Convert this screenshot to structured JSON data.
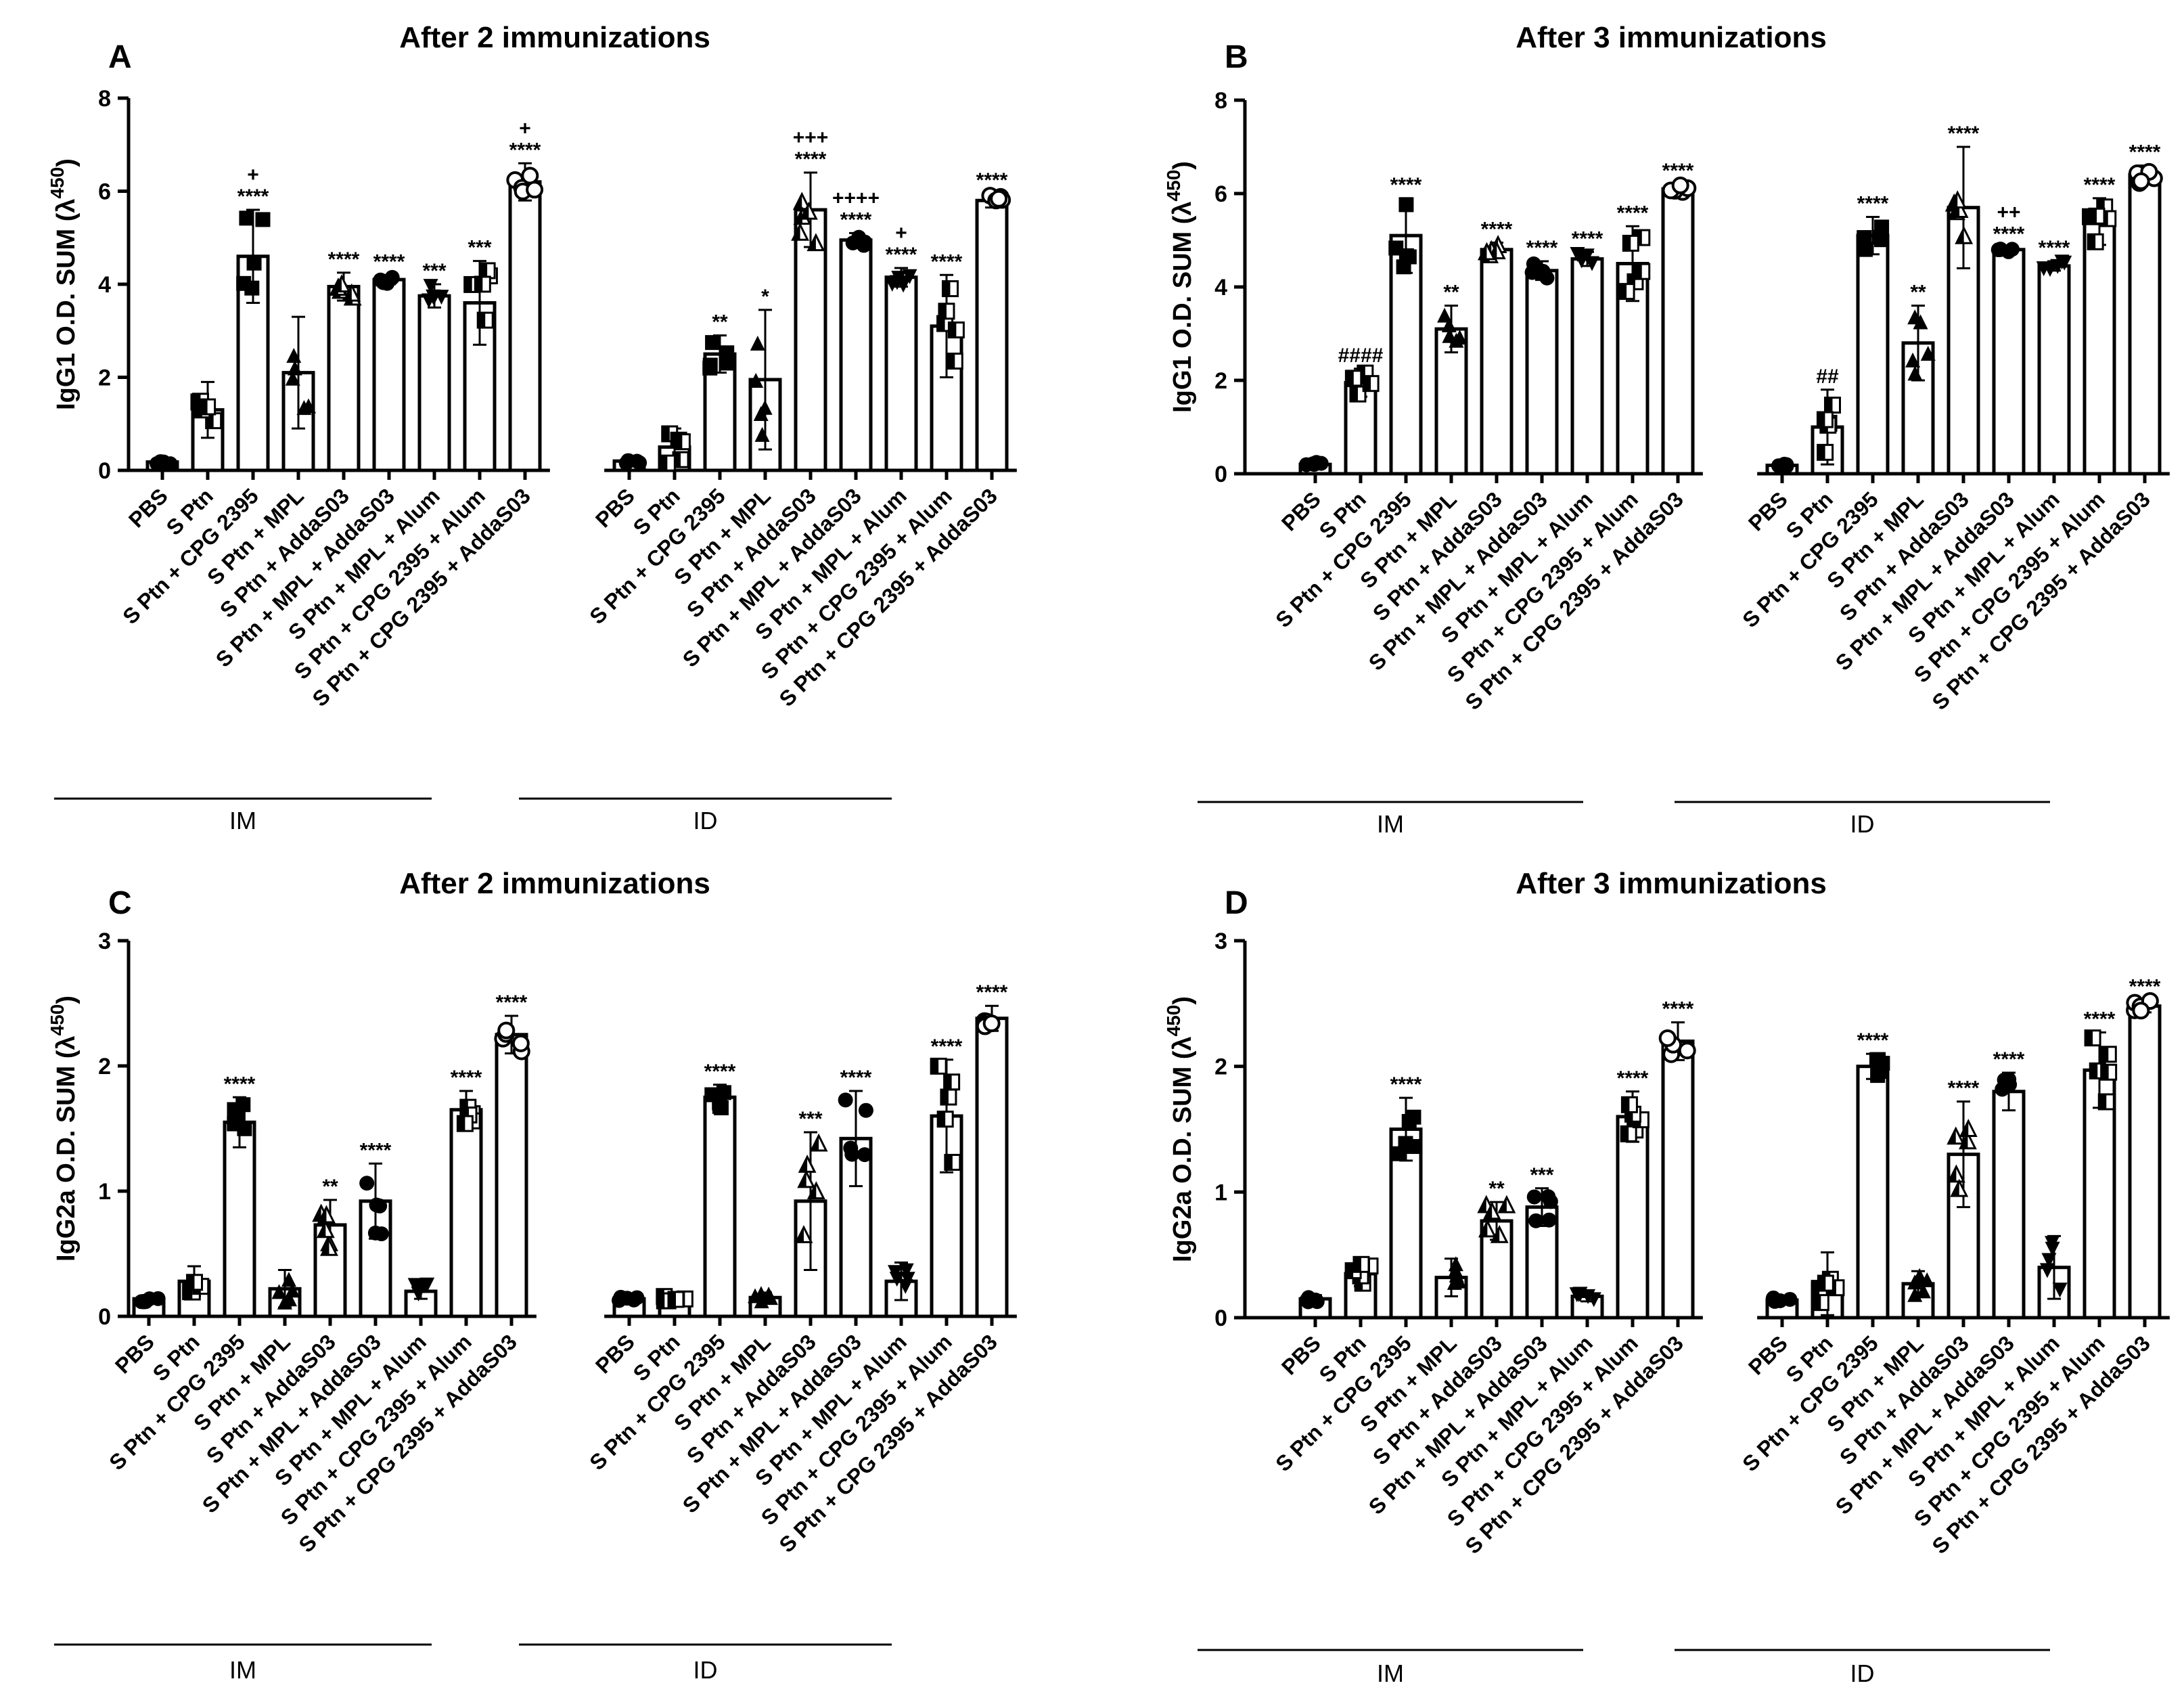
{
  "chart_data": [
    {
      "type": "bar",
      "panel_letter": "A",
      "title": "After 2 immunizations",
      "ylabel_text": "IgG1 O.D. SUM (λ",
      "ylabel_sup": "450",
      "ylabel_close": ")",
      "ylim": [
        0,
        8
      ],
      "yticks": [
        "0",
        "2",
        "4",
        "6",
        "8"
      ],
      "groups": [
        {
          "name": "IM",
          "categories": [
            "PBS",
            "S Ptn",
            "S Ptn + CPG 2395",
            "S Ptn + MPL",
            "S Ptn + AddaS03",
            "S Ptn + MPL + AddaS03",
            "S Ptn + MPL + Alum",
            "S Ptn + CPG 2395 + Alum",
            "S Ptn + CPG 2395 + AddaS03"
          ],
          "values": [
            0.18,
            1.3,
            4.6,
            2.1,
            3.95,
            4.1,
            3.75,
            3.6,
            6.2
          ],
          "errors": [
            0.05,
            0.6,
            1.0,
            1.2,
            0.3,
            0.1,
            0.25,
            0.9,
            0.4
          ],
          "significance": [
            "",
            "",
            "****",
            "",
            "****",
            "****",
            "***",
            "***",
            "****"
          ],
          "plus": [
            "",
            "",
            "+",
            "",
            "",
            "",
            "",
            "",
            "+"
          ]
        },
        {
          "name": "ID",
          "categories": [
            "PBS",
            "S Ptn",
            "S Ptn + CPG 2395",
            "S Ptn + MPL",
            "S Ptn + AddaS03",
            "S Ptn + MPL + AddaS03",
            "S Ptn + MPL + Alum",
            "S Ptn + CPG 2395 + Alum",
            "S Ptn + CPG 2395 + AddaS03"
          ],
          "values": [
            0.2,
            0.5,
            2.5,
            1.95,
            5.6,
            4.95,
            4.15,
            3.1,
            5.8
          ],
          "errors": [
            0.05,
            0.4,
            0.4,
            1.5,
            0.8,
            0.15,
            0.2,
            1.1,
            0.15
          ],
          "significance": [
            "",
            "",
            "**",
            "*",
            "****",
            "****",
            "****",
            "****",
            "****"
          ],
          "plus": [
            "",
            "",
            "",
            "",
            "+++",
            "++++",
            "+",
            "",
            ""
          ]
        }
      ]
    },
    {
      "type": "bar",
      "panel_letter": "B",
      "title": "After 3 immunizations",
      "ylabel_text": "IgG1 O.D. SUM (λ",
      "ylabel_sup": "450",
      "ylabel_close": ")",
      "ylim": [
        0,
        8
      ],
      "yticks": [
        "0",
        "2",
        "4",
        "6",
        "8"
      ],
      "groups": [
        {
          "name": "IM",
          "categories": [
            "PBS",
            "S Ptn",
            "S Ptn + CPG 2395",
            "S Ptn + MPL",
            "S Ptn + AddaS03",
            "S Ptn + MPL + AddaS03",
            "S Ptn + MPL + Alum",
            "S Ptn + CPG 2395 + Alum",
            "S Ptn + CPG 2395 + AddaS03"
          ],
          "values": [
            0.2,
            1.95,
            5.1,
            3.1,
            4.8,
            4.35,
            4.6,
            4.5,
            6.1
          ],
          "errors": [
            0.05,
            0.3,
            0.8,
            0.5,
            0.15,
            0.2,
            0.15,
            0.8,
            0.1
          ],
          "significance": [
            "",
            "####",
            "****",
            "**",
            "****",
            "****",
            "****",
            "****",
            "****"
          ],
          "plus": [
            "",
            "",
            "",
            "",
            "",
            "",
            "",
            "",
            ""
          ]
        },
        {
          "name": "ID",
          "categories": [
            "PBS",
            "S Ptn",
            "S Ptn + CPG 2395",
            "S Ptn + MPL",
            "S Ptn + AddaS03",
            "S Ptn + MPL + AddaS03",
            "S Ptn + MPL + Alum",
            "S Ptn + CPG 2395 + Alum",
            "S Ptn + CPG 2395 + AddaS03"
          ],
          "values": [
            0.18,
            1.0,
            5.1,
            2.8,
            5.7,
            4.8,
            4.45,
            5.4,
            6.4
          ],
          "errors": [
            0.03,
            0.8,
            0.4,
            0.8,
            1.3,
            0.05,
            0.1,
            0.5,
            0.2
          ],
          "significance": [
            "",
            "##",
            "****",
            "**",
            "****",
            "****",
            "****",
            "****",
            "****"
          ],
          "plus": [
            "",
            "",
            "",
            "",
            "",
            "++",
            "",
            "",
            ""
          ]
        }
      ]
    },
    {
      "type": "bar",
      "panel_letter": "C",
      "title": "After 2 immunizations",
      "ylabel_text": "IgG2a O.D. SUM (λ",
      "ylabel_sup": "450",
      "ylabel_close": ")",
      "ylim": [
        0,
        3
      ],
      "yticks": [
        "0",
        "1",
        "2",
        "3"
      ],
      "groups": [
        {
          "name": "IM",
          "categories": [
            "PBS",
            "S Ptn",
            "S Ptn + CPG 2395",
            "S Ptn + MPL",
            "S Ptn + AddaS03",
            "S Ptn + MPL + AddaS03",
            "S Ptn + MPL + Alum",
            "S Ptn + CPG 2395 + Alum",
            "S Ptn + CPG 2395 + AddaS03"
          ],
          "values": [
            0.14,
            0.28,
            1.55,
            0.22,
            0.73,
            0.92,
            0.2,
            1.65,
            2.25
          ],
          "errors": [
            0.03,
            0.12,
            0.2,
            0.15,
            0.2,
            0.3,
            0.06,
            0.15,
            0.15
          ],
          "significance": [
            "",
            "",
            "****",
            "",
            "**",
            "****",
            "",
            "****",
            "****"
          ],
          "plus": [
            "",
            "",
            "",
            "",
            "",
            "",
            "",
            "",
            ""
          ]
        },
        {
          "name": "ID",
          "categories": [
            "PBS",
            "S Ptn",
            "S Ptn + CPG 2395",
            "S Ptn + MPL",
            "S Ptn + AddaS03",
            "S Ptn + MPL + AddaS03",
            "S Ptn + MPL + Alum",
            "S Ptn + CPG 2395 + Alum",
            "S Ptn + CPG 2395 + AddaS03"
          ],
          "values": [
            0.14,
            0.15,
            1.75,
            0.15,
            0.92,
            1.42,
            0.28,
            1.6,
            2.38
          ],
          "errors": [
            0.02,
            0.03,
            0.1,
            0.04,
            0.55,
            0.38,
            0.15,
            0.45,
            0.1
          ],
          "significance": [
            "",
            "",
            "****",
            "",
            "***",
            "****",
            "",
            "****",
            "****"
          ],
          "plus": [
            "",
            "",
            "",
            "",
            "",
            "",
            "",
            "",
            ""
          ]
        }
      ]
    },
    {
      "type": "bar",
      "panel_letter": "D",
      "title": "After 3 immunizations",
      "ylabel_text": "IgG2a O.D. SUM (λ",
      "ylabel_sup": "450",
      "ylabel_close": ")",
      "ylim": [
        0,
        3
      ],
      "yticks": [
        "0",
        "1",
        "2",
        "3"
      ],
      "groups": [
        {
          "name": "IM",
          "categories": [
            "PBS",
            "S Ptn",
            "S Ptn + CPG 2395",
            "S Ptn + MPL",
            "S Ptn + AddaS03",
            "S Ptn + MPL + AddaS03",
            "S Ptn + MPL + Alum",
            "S Ptn + CPG 2395 + Alum",
            "S Ptn + CPG 2395 + AddaS03"
          ],
          "values": [
            0.15,
            0.35,
            1.5,
            0.32,
            0.77,
            0.88,
            0.17,
            1.6,
            2.2
          ],
          "errors": [
            0.03,
            0.1,
            0.25,
            0.15,
            0.15,
            0.15,
            0.04,
            0.2,
            0.15
          ],
          "significance": [
            "",
            "",
            "****",
            "",
            "**",
            "***",
            "",
            "****",
            "****"
          ],
          "plus": [
            "",
            "",
            "",
            "",
            "",
            "",
            "",
            "",
            ""
          ]
        },
        {
          "name": "ID",
          "categories": [
            "PBS",
            "S Ptn",
            "S Ptn + CPG 2395",
            "S Ptn + MPL",
            "S Ptn + AddaS03",
            "S Ptn + MPL + AddaS03",
            "S Ptn + MPL + Alum",
            "S Ptn + CPG 2395 + Alum",
            "S Ptn + CPG 2395 + AddaS03"
          ],
          "values": [
            0.14,
            0.27,
            2.0,
            0.27,
            1.3,
            1.8,
            0.4,
            1.97,
            2.48
          ],
          "errors": [
            0.02,
            0.25,
            0.1,
            0.1,
            0.42,
            0.15,
            0.25,
            0.3,
            0.05
          ],
          "significance": [
            "",
            "",
            "****",
            "",
            "****",
            "****",
            "",
            "****",
            "****"
          ],
          "plus": [
            "",
            "",
            "",
            "",
            "",
            "",
            "",
            "",
            ""
          ]
        }
      ]
    }
  ]
}
